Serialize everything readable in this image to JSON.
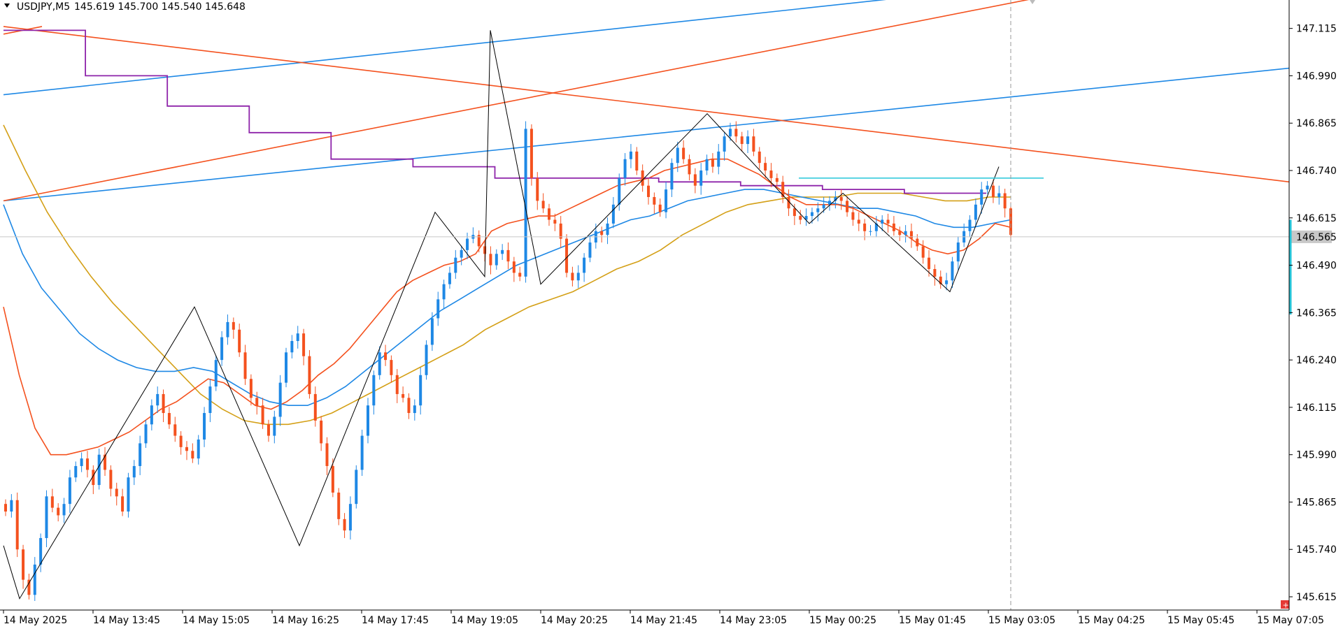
{
  "header": {
    "symbol": "USDJPY,M5",
    "ohlc": "145.619 145.700 145.540 145.648"
  },
  "colors": {
    "bull": "#1e88e5",
    "bear": "#f4511e",
    "ema_fast": "#f4511e",
    "ema_mid": "#1e88e5",
    "ema_slow": "#d4a017",
    "stepline": "#8e24aa",
    "zigzag": "#000000",
    "trend_blue": "#1e88e5",
    "trend_red": "#f4511e",
    "level": "#26c6da",
    "current_price_label_bg": "#c8c8c8"
  },
  "chart_data": {
    "type": "candlestick",
    "symbol": "USDJPY",
    "timeframe": "M5",
    "y_ticks": [
      "147.115",
      "146.990",
      "146.865",
      "146.740",
      "146.615",
      "146.490",
      "146.365",
      "146.240",
      "146.115",
      "145.990",
      "145.865",
      "145.740",
      "145.615"
    ],
    "y_range": [
      145.58,
      147.19
    ],
    "current_price": "146.565",
    "x_ticks": [
      "14 May 2025",
      "14 May 13:45",
      "14 May 15:05",
      "14 May 16:25",
      "14 May 17:45",
      "14 May 19:05",
      "14 May 20:25",
      "14 May 21:45",
      "14 May 23:05",
      "15 May 00:25",
      "15 May 01:45",
      "15 May 03:05",
      "15 May 04:25",
      "15 May 05:45",
      "15 May 07:05"
    ],
    "candle_closes": [
      145.84,
      145.87,
      145.74,
      145.66,
      145.62,
      145.7,
      145.77,
      145.88,
      145.85,
      145.83,
      145.86,
      145.93,
      145.96,
      145.98,
      145.95,
      145.91,
      145.99,
      145.95,
      145.9,
      145.88,
      145.84,
      145.93,
      145.96,
      146.02,
      146.07,
      146.12,
      146.15,
      146.1,
      146.07,
      146.04,
      146.01,
      146.0,
      145.98,
      146.03,
      146.1,
      146.17,
      146.24,
      146.3,
      146.34,
      146.32,
      146.26,
      146.19,
      146.14,
      146.12,
      146.07,
      146.04,
      146.09,
      146.18,
      146.26,
      146.29,
      146.31,
      146.25,
      146.15,
      146.08,
      146.02,
      145.96,
      145.89,
      145.82,
      145.79,
      145.86,
      145.95,
      146.04,
      146.12,
      146.2,
      146.26,
      146.24,
      146.2,
      146.15,
      146.14,
      146.1,
      146.12,
      146.2,
      146.28,
      146.35,
      146.4,
      146.44,
      146.47,
      146.51,
      146.53,
      146.56,
      146.57,
      146.54,
      146.52,
      146.49,
      146.52,
      146.53,
      146.5,
      146.47,
      146.46,
      146.85,
      146.72,
      146.66,
      146.64,
      146.61,
      146.6,
      146.56,
      146.47,
      146.45,
      146.47,
      146.51,
      146.55,
      146.58,
      146.57,
      146.6,
      146.65,
      146.72,
      146.77,
      146.79,
      146.74,
      146.7,
      146.67,
      146.65,
      146.63,
      146.69,
      146.76,
      146.8,
      146.77,
      146.73,
      146.7,
      146.74,
      146.77,
      146.75,
      146.79,
      146.83,
      146.85,
      146.83,
      146.81,
      146.83,
      146.79,
      146.76,
      146.74,
      146.72,
      146.71,
      146.67,
      146.64,
      146.62,
      146.61,
      146.62,
      146.63,
      146.64,
      146.65,
      146.66,
      146.67,
      146.66,
      146.63,
      146.61,
      146.6,
      146.58,
      146.58,
      146.6,
      146.61,
      146.6,
      146.58,
      146.57,
      146.58,
      146.56,
      146.54,
      146.51,
      146.48,
      146.46,
      146.44,
      146.45,
      146.5,
      146.55,
      146.58,
      146.61,
      146.65,
      146.69,
      146.7,
      146.67,
      146.68,
      146.64,
      146.57
    ],
    "ema_fast": [
      146.38,
      146.2,
      146.06,
      145.99,
      145.99,
      146.0,
      146.01,
      146.03,
      146.05,
      146.08,
      146.11,
      146.13,
      146.16,
      146.19,
      146.18,
      146.15,
      146.12,
      146.11,
      146.13,
      146.16,
      146.2,
      146.23,
      146.27,
      146.32,
      146.37,
      146.42,
      146.45,
      146.47,
      146.49,
      146.5,
      146.52,
      146.58,
      146.6,
      146.61,
      146.62,
      146.62,
      146.64,
      146.66,
      146.68,
      146.7,
      146.71,
      146.72,
      146.74,
      146.75,
      146.76,
      146.77,
      146.77,
      146.75,
      146.73,
      146.7,
      146.67,
      146.65,
      146.65,
      146.65,
      146.64,
      146.62,
      146.6,
      146.58,
      146.55,
      146.53,
      146.52,
      146.53,
      146.56,
      146.6,
      146.59
    ],
    "ema_mid": [
      146.65,
      146.52,
      146.43,
      146.37,
      146.31,
      146.27,
      146.24,
      146.22,
      146.21,
      146.21,
      146.22,
      146.21,
      146.18,
      146.15,
      146.13,
      146.12,
      146.12,
      146.14,
      146.17,
      146.21,
      146.25,
      146.29,
      146.33,
      146.37,
      146.4,
      146.43,
      146.46,
      146.49,
      146.51,
      146.53,
      146.55,
      146.57,
      146.59,
      146.61,
      146.62,
      146.64,
      146.66,
      146.67,
      146.68,
      146.69,
      146.69,
      146.68,
      146.67,
      146.66,
      146.65,
      146.64,
      146.64,
      146.63,
      146.62,
      146.6,
      146.59,
      146.59,
      146.6,
      146.61
    ],
    "ema_slow": [
      146.86,
      146.74,
      146.63,
      146.54,
      146.46,
      146.39,
      146.33,
      146.27,
      146.21,
      146.15,
      146.11,
      146.08,
      146.07,
      146.07,
      146.08,
      146.1,
      146.13,
      146.16,
      146.19,
      146.22,
      146.25,
      146.28,
      146.32,
      146.35,
      146.38,
      146.4,
      146.42,
      146.45,
      146.48,
      146.5,
      146.53,
      146.57,
      146.6,
      146.63,
      146.65,
      146.66,
      146.67,
      146.67,
      146.67,
      146.68,
      146.68,
      146.68,
      146.67,
      146.66,
      146.66,
      146.67,
      146.67
    ],
    "stepline_levels": [
      147.11,
      146.99,
      146.91,
      146.84,
      146.77,
      146.75,
      146.72,
      146.72,
      146.71,
      146.7,
      146.69,
      146.68
    ],
    "zigzag_points": [
      [
        145.75
      ],
      [
        145.61
      ],
      [
        146.38
      ],
      [
        145.75
      ],
      [
        146.63
      ],
      [
        146.46
      ],
      [
        147.11
      ],
      [
        146.44
      ],
      [
        146.89
      ],
      [
        146.6
      ],
      [
        146.68
      ],
      [
        146.42
      ],
      [
        146.75
      ]
    ],
    "level_line": "146.720"
  }
}
